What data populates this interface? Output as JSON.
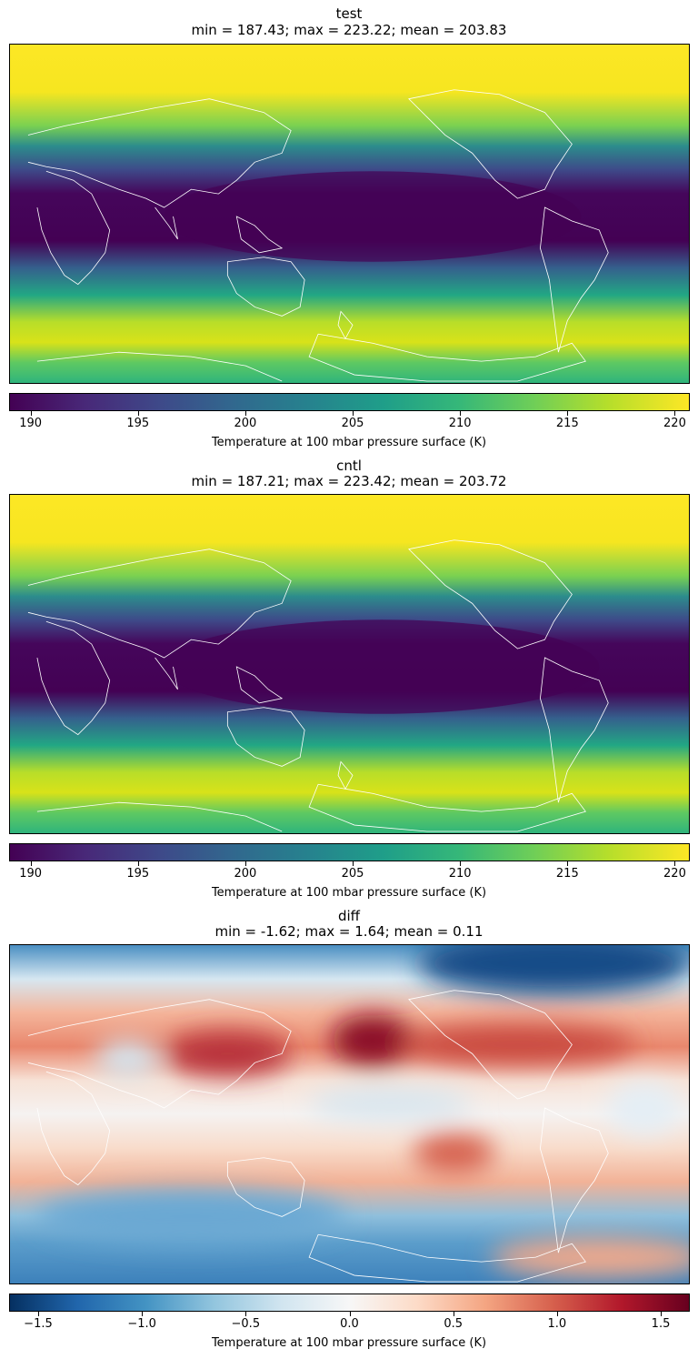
{
  "chart_data": [
    {
      "type": "heatmap",
      "title": "test",
      "subtitle": "min = 187.43; max = 223.22; mean = 203.83",
      "colormap": "viridis",
      "colorbar": {
        "label": "Temperature at 100 mbar pressure surface (K)",
        "vmin": 189,
        "vmax": 220.7,
        "ticks": [
          190,
          195,
          200,
          205,
          210,
          215,
          220
        ],
        "tick_labels": [
          "190",
          "195",
          "200",
          "205",
          "210",
          "215",
          "220"
        ]
      },
      "stats": {
        "min": 187.43,
        "max": 223.22,
        "mean": 203.83
      },
      "coastlines": "white"
    },
    {
      "type": "heatmap",
      "title": "cntl",
      "subtitle": "min = 187.21; max = 223.42; mean = 203.72",
      "colormap": "viridis",
      "colorbar": {
        "label": "Temperature at 100 mbar pressure surface (K)",
        "vmin": 189,
        "vmax": 220.7,
        "ticks": [
          190,
          195,
          200,
          205,
          210,
          215,
          220
        ],
        "tick_labels": [
          "190",
          "195",
          "200",
          "205",
          "210",
          "215",
          "220"
        ]
      },
      "stats": {
        "min": 187.21,
        "max": 223.42,
        "mean": 203.72
      },
      "coastlines": "white"
    },
    {
      "type": "heatmap",
      "title": "diff",
      "subtitle": "min = -1.62; max = 1.64; mean = 0.11",
      "colormap": "RdBu_r",
      "colorbar": {
        "label": "Temperature at 100 mbar pressure surface (K)",
        "vmin": -1.64,
        "vmax": 1.64,
        "ticks": [
          -1.5,
          -1.0,
          -0.5,
          0.0,
          0.5,
          1.0,
          1.5
        ],
        "tick_labels": [
          "−1.5",
          "−1.0",
          "−0.5",
          "0.0",
          "0.5",
          "1.0",
          "1.5"
        ]
      },
      "stats": {
        "min": -1.62,
        "max": 1.64,
        "mean": 0.11
      },
      "coastlines": "white"
    }
  ],
  "colors": {
    "viridis": [
      "#440154",
      "#482878",
      "#3e4989",
      "#31688e",
      "#26828e",
      "#1f9e89",
      "#35b779",
      "#6ece58",
      "#b5de2b",
      "#fde725"
    ],
    "rdbu_r": [
      "#053061",
      "#2166ac",
      "#4393c3",
      "#92c5de",
      "#d1e5f0",
      "#f7f7f7",
      "#fddbc7",
      "#f4a582",
      "#d6604d",
      "#b2182b",
      "#67001f"
    ]
  }
}
